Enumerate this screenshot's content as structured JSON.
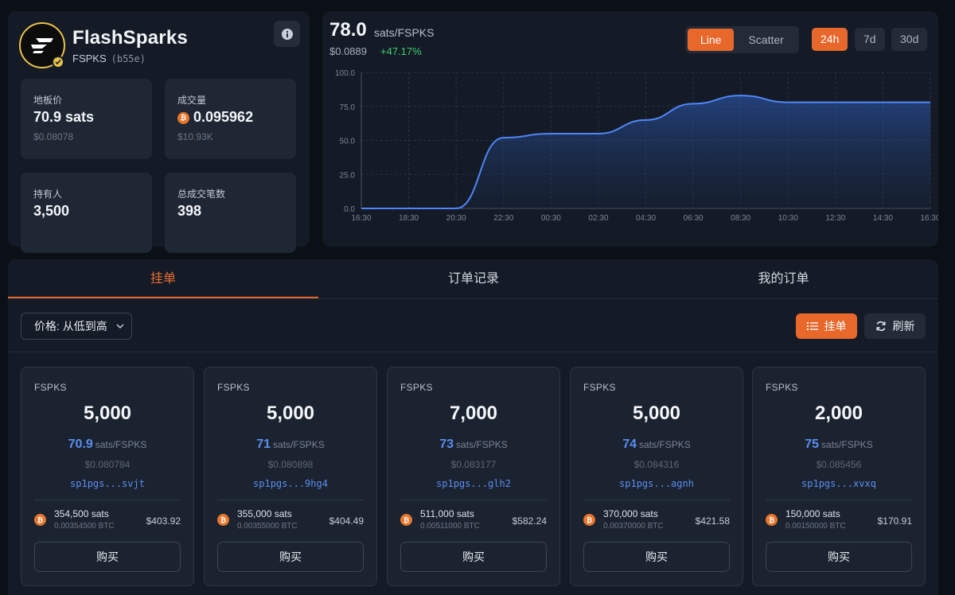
{
  "token": {
    "name": "FlashSparks",
    "ticker": "FSPKS",
    "id": "(b55e)",
    "logo_icon": "flash-sparks-logo",
    "verified_icon": "check-badge-icon"
  },
  "stats": {
    "floor": {
      "label": "地板价",
      "value": "70.9 sats",
      "sub": "$0.08078"
    },
    "volume": {
      "label": "成交量",
      "value": "0.095962",
      "sub": "$10.93K"
    },
    "holders": {
      "label": "持有人",
      "value": "3,500"
    },
    "trades": {
      "label": "总成交笔数",
      "value": "398"
    }
  },
  "price": {
    "value": "78.0",
    "unit": "sats/FSPKS",
    "usd": "$0.0889",
    "change": "+47.17%"
  },
  "chart_controls": {
    "types": [
      "Line",
      "Scatter"
    ],
    "active_type": "Line",
    "timeframes": [
      "24h",
      "7d",
      "30d"
    ],
    "active_timeframe": "24h"
  },
  "chart_data": {
    "type": "area",
    "x": [
      "16:30",
      "18:30",
      "20:30",
      "22:30",
      "00:30",
      "02:30",
      "04:30",
      "06:30",
      "08:30",
      "10:30",
      "12:30",
      "14:30",
      "16:30"
    ],
    "xticks": [
      "16:30",
      "18:30",
      "20:30",
      "22:30",
      "00:30",
      "02:30",
      "04:30",
      "06:30",
      "08:30",
      "10:30",
      "12:30",
      "14:30",
      "16:30"
    ],
    "yticks": [
      "0.0",
      "25.0",
      "50.0",
      "75.0",
      "100.0"
    ],
    "ylim": [
      0,
      100
    ],
    "series": [
      {
        "values": [
          0,
          0,
          0,
          52,
          55,
          55,
          65,
          77,
          83,
          78,
          78,
          78,
          78
        ]
      }
    ],
    "grid": true,
    "line_color": "#4f86f7"
  },
  "tabs": [
    "挂单",
    "订单记录",
    "我的订单"
  ],
  "toolbar": {
    "sort_label": "价格: 从低到高",
    "list_label": "挂单",
    "refresh_label": "刷新"
  },
  "listings": [
    {
      "ticker": "FSPKS",
      "amount": "5,000",
      "price": "70.9",
      "unit": "sats/FSPKS",
      "usd": "$0.080784",
      "seller": "sp1pgs...svjt",
      "total_sats": "354,500 sats",
      "total_btc": "0.00354500 BTC",
      "total_usd": "$403.92",
      "buy": "购买"
    },
    {
      "ticker": "FSPKS",
      "amount": "5,000",
      "price": "71",
      "unit": "sats/FSPKS",
      "usd": "$0.080898",
      "seller": "sp1pgs...9hg4",
      "total_sats": "355,000 sats",
      "total_btc": "0.00355000 BTC",
      "total_usd": "$404.49",
      "buy": "购买"
    },
    {
      "ticker": "FSPKS",
      "amount": "7,000",
      "price": "73",
      "unit": "sats/FSPKS",
      "usd": "$0.083177",
      "seller": "sp1pgs...glh2",
      "total_sats": "511,000 sats",
      "total_btc": "0.00511000 BTC",
      "total_usd": "$582.24",
      "buy": "购买"
    },
    {
      "ticker": "FSPKS",
      "amount": "5,000",
      "price": "74",
      "unit": "sats/FSPKS",
      "usd": "$0.084316",
      "seller": "sp1pgs...agnh",
      "total_sats": "370,000 sats",
      "total_btc": "0.00370000 BTC",
      "total_usd": "$421.58",
      "buy": "购买"
    },
    {
      "ticker": "FSPKS",
      "amount": "2,000",
      "price": "75",
      "unit": "sats/FSPKS",
      "usd": "$0.085456",
      "seller": "sp1pgs...xvxq",
      "total_sats": "150,000 sats",
      "total_btc": "0.00150000 BTC",
      "total_usd": "$170.91",
      "buy": "购买"
    }
  ]
}
